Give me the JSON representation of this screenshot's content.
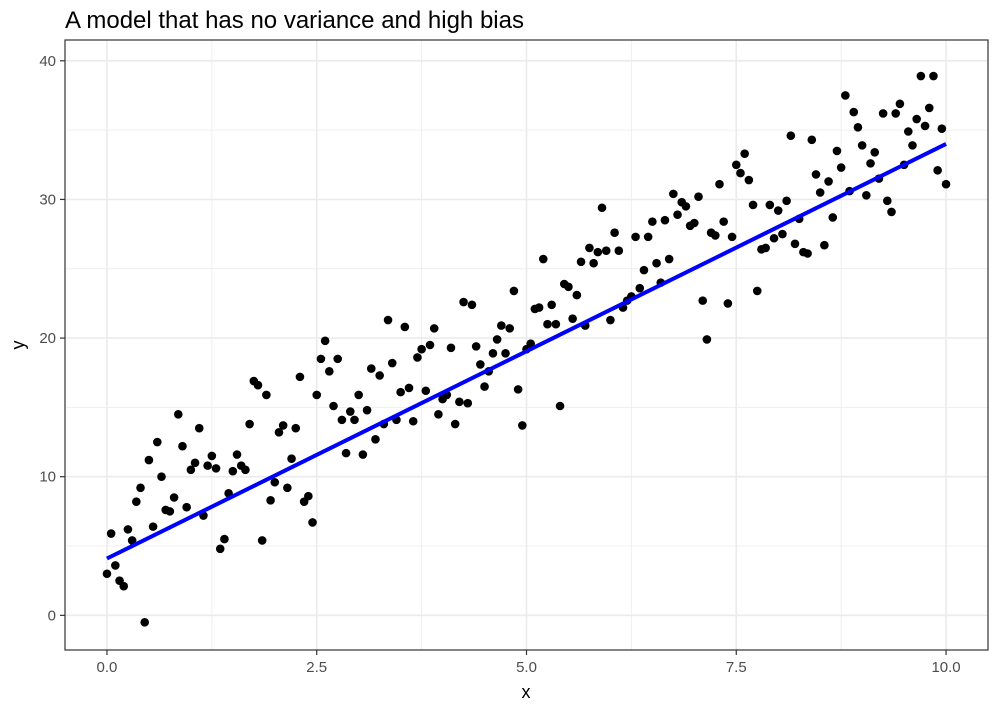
{
  "chart_data": {
    "type": "scatter",
    "title": "A model that has no variance and high bias",
    "xlabel": "x",
    "ylabel": "y",
    "xlim": [
      -0.5,
      10.5
    ],
    "ylim": [
      -2.5,
      41.5
    ],
    "x_ticks": [
      0,
      2.5,
      5,
      7.5,
      10
    ],
    "x_tick_labels": [
      "0.0",
      "2.5",
      "5.0",
      "7.5",
      "10.0"
    ],
    "y_ticks": [
      0,
      10,
      20,
      30,
      40
    ],
    "y_tick_labels": [
      "0",
      "10",
      "20",
      "30",
      "40"
    ],
    "grid": true,
    "legend": "none",
    "colors": {
      "points": "#000000",
      "line": "#0000ff",
      "grid": "#ebebeb",
      "border": "#333333"
    },
    "points": [
      [
        0.0,
        3.0
      ],
      [
        0.05,
        5.9
      ],
      [
        0.1,
        3.6
      ],
      [
        0.15,
        2.5
      ],
      [
        0.2,
        2.1
      ],
      [
        0.25,
        6.2
      ],
      [
        0.3,
        5.4
      ],
      [
        0.35,
        8.2
      ],
      [
        0.4,
        9.2
      ],
      [
        0.45,
        -0.5
      ],
      [
        0.5,
        11.2
      ],
      [
        0.55,
        6.4
      ],
      [
        0.6,
        12.5
      ],
      [
        0.65,
        10.0
      ],
      [
        0.7,
        7.6
      ],
      [
        0.75,
        7.5
      ],
      [
        0.8,
        8.5
      ],
      [
        0.85,
        14.5
      ],
      [
        0.9,
        12.2
      ],
      [
        0.95,
        7.8
      ],
      [
        1.0,
        10.5
      ],
      [
        1.05,
        11.0
      ],
      [
        1.1,
        13.5
      ],
      [
        1.15,
        7.2
      ],
      [
        1.2,
        10.8
      ],
      [
        1.25,
        11.5
      ],
      [
        1.3,
        10.6
      ],
      [
        1.35,
        4.8
      ],
      [
        1.4,
        5.5
      ],
      [
        1.45,
        8.8
      ],
      [
        1.5,
        10.4
      ],
      [
        1.55,
        11.6
      ],
      [
        1.6,
        10.8
      ],
      [
        1.65,
        10.5
      ],
      [
        1.7,
        13.8
      ],
      [
        1.75,
        16.9
      ],
      [
        1.8,
        16.6
      ],
      [
        1.85,
        5.4
      ],
      [
        1.9,
        15.9
      ],
      [
        1.95,
        8.3
      ],
      [
        2.0,
        9.6
      ],
      [
        2.05,
        13.2
      ],
      [
        2.1,
        13.7
      ],
      [
        2.15,
        9.2
      ],
      [
        2.2,
        11.3
      ],
      [
        2.25,
        13.5
      ],
      [
        2.3,
        17.2
      ],
      [
        2.35,
        8.2
      ],
      [
        2.4,
        8.6
      ],
      [
        2.45,
        6.7
      ],
      [
        2.5,
        15.9
      ],
      [
        2.55,
        18.5
      ],
      [
        2.6,
        19.8
      ],
      [
        2.65,
        17.6
      ],
      [
        2.7,
        15.1
      ],
      [
        2.75,
        18.5
      ],
      [
        2.8,
        14.1
      ],
      [
        2.85,
        11.7
      ],
      [
        2.9,
        14.7
      ],
      [
        2.95,
        14.1
      ],
      [
        3.0,
        15.9
      ],
      [
        3.05,
        11.6
      ],
      [
        3.1,
        14.8
      ],
      [
        3.15,
        17.8
      ],
      [
        3.2,
        12.7
      ],
      [
        3.25,
        17.3
      ],
      [
        3.3,
        13.8
      ],
      [
        3.35,
        21.3
      ],
      [
        3.4,
        18.2
      ],
      [
        3.45,
        14.1
      ],
      [
        3.5,
        16.1
      ],
      [
        3.55,
        20.8
      ],
      [
        3.6,
        16.4
      ],
      [
        3.65,
        14.0
      ],
      [
        3.7,
        18.6
      ],
      [
        3.75,
        19.2
      ],
      [
        3.8,
        16.2
      ],
      [
        3.85,
        19.5
      ],
      [
        3.9,
        20.7
      ],
      [
        3.95,
        14.5
      ],
      [
        4.0,
        15.6
      ],
      [
        4.05,
        15.9
      ],
      [
        4.1,
        19.3
      ],
      [
        4.15,
        13.8
      ],
      [
        4.2,
        15.4
      ],
      [
        4.25,
        22.6
      ],
      [
        4.3,
        15.3
      ],
      [
        4.35,
        22.4
      ],
      [
        4.4,
        19.4
      ],
      [
        4.45,
        18.1
      ],
      [
        4.5,
        16.5
      ],
      [
        4.55,
        17.6
      ],
      [
        4.6,
        18.9
      ],
      [
        4.65,
        19.9
      ],
      [
        4.7,
        20.9
      ],
      [
        4.75,
        18.9
      ],
      [
        4.8,
        20.7
      ],
      [
        4.85,
        23.4
      ],
      [
        4.9,
        16.3
      ],
      [
        4.95,
        13.7
      ],
      [
        5.0,
        19.2
      ],
      [
        5.05,
        19.6
      ],
      [
        5.1,
        22.1
      ],
      [
        5.15,
        22.2
      ],
      [
        5.2,
        25.7
      ],
      [
        5.25,
        21.0
      ],
      [
        5.3,
        22.4
      ],
      [
        5.35,
        21.0
      ],
      [
        5.4,
        15.1
      ],
      [
        5.45,
        23.9
      ],
      [
        5.5,
        23.7
      ],
      [
        5.55,
        21.4
      ],
      [
        5.6,
        23.1
      ],
      [
        5.65,
        25.5
      ],
      [
        5.7,
        20.9
      ],
      [
        5.75,
        26.5
      ],
      [
        5.8,
        25.4
      ],
      [
        5.85,
        26.2
      ],
      [
        5.9,
        29.4
      ],
      [
        5.95,
        26.3
      ],
      [
        6.0,
        21.3
      ],
      [
        6.05,
        27.6
      ],
      [
        6.1,
        26.3
      ],
      [
        6.15,
        22.2
      ],
      [
        6.2,
        22.7
      ],
      [
        6.25,
        23.0
      ],
      [
        6.3,
        27.3
      ],
      [
        6.35,
        23.6
      ],
      [
        6.4,
        24.9
      ],
      [
        6.45,
        27.3
      ],
      [
        6.5,
        28.4
      ],
      [
        6.55,
        25.4
      ],
      [
        6.6,
        24.0
      ],
      [
        6.65,
        28.5
      ],
      [
        6.7,
        25.7
      ],
      [
        6.75,
        30.4
      ],
      [
        6.8,
        28.9
      ],
      [
        6.85,
        29.8
      ],
      [
        6.9,
        29.5
      ],
      [
        6.95,
        28.1
      ],
      [
        7.0,
        28.3
      ],
      [
        7.05,
        30.2
      ],
      [
        7.1,
        22.7
      ],
      [
        7.15,
        19.9
      ],
      [
        7.2,
        27.6
      ],
      [
        7.25,
        27.4
      ],
      [
        7.3,
        31.1
      ],
      [
        7.35,
        28.4
      ],
      [
        7.4,
        22.5
      ],
      [
        7.45,
        27.3
      ],
      [
        7.5,
        32.5
      ],
      [
        7.55,
        31.9
      ],
      [
        7.6,
        33.3
      ],
      [
        7.65,
        31.4
      ],
      [
        7.7,
        29.6
      ],
      [
        7.75,
        23.4
      ],
      [
        7.8,
        26.4
      ],
      [
        7.85,
        26.5
      ],
      [
        7.9,
        29.6
      ],
      [
        7.95,
        27.2
      ],
      [
        8.0,
        29.2
      ],
      [
        8.05,
        27.5
      ],
      [
        8.1,
        29.9
      ],
      [
        8.15,
        34.6
      ],
      [
        8.2,
        26.8
      ],
      [
        8.25,
        28.6
      ],
      [
        8.3,
        26.2
      ],
      [
        8.35,
        26.1
      ],
      [
        8.4,
        34.3
      ],
      [
        8.45,
        31.8
      ],
      [
        8.5,
        30.5
      ],
      [
        8.55,
        26.7
      ],
      [
        8.6,
        31.3
      ],
      [
        8.65,
        28.7
      ],
      [
        8.7,
        33.5
      ],
      [
        8.75,
        32.3
      ],
      [
        8.8,
        37.5
      ],
      [
        8.85,
        30.6
      ],
      [
        8.9,
        36.3
      ],
      [
        8.95,
        35.2
      ],
      [
        9.0,
        33.9
      ],
      [
        9.05,
        30.3
      ],
      [
        9.1,
        32.6
      ],
      [
        9.15,
        33.4
      ],
      [
        9.2,
        31.5
      ],
      [
        9.25,
        36.2
      ],
      [
        9.3,
        29.9
      ],
      [
        9.35,
        29.1
      ],
      [
        9.4,
        36.2
      ],
      [
        9.45,
        36.9
      ],
      [
        9.5,
        32.5
      ],
      [
        9.55,
        34.9
      ],
      [
        9.6,
        33.9
      ],
      [
        9.65,
        35.8
      ],
      [
        9.7,
        38.9
      ],
      [
        9.75,
        35.3
      ],
      [
        9.8,
        36.6
      ],
      [
        9.85,
        38.9
      ],
      [
        9.9,
        32.1
      ],
      [
        9.95,
        35.1
      ],
      [
        10.0,
        31.1
      ]
    ],
    "fit_line": {
      "x": [
        0,
        10
      ],
      "y": [
        4.1,
        34.0
      ]
    }
  }
}
